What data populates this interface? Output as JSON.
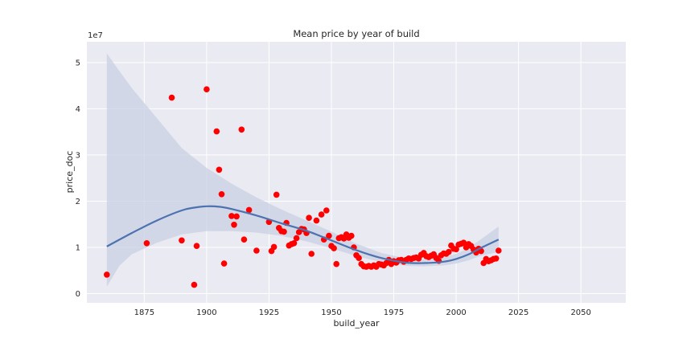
{
  "chart_data": {
    "type": "scatter",
    "title": "Mean price by year of build",
    "xlabel": "build_year",
    "ylabel": "price_doc",
    "y_multiplier_label": "1e7",
    "xlim": [
      1852,
      2068
    ],
    "ylim": [
      -0.2,
      5.45
    ],
    "y_scale": 10000000,
    "x_ticks": [
      1875,
      1900,
      1925,
      1950,
      1975,
      2000,
      2025,
      2050
    ],
    "y_ticks": [
      0,
      1,
      2,
      3,
      4,
      5
    ],
    "grid": true,
    "background": "#eaeaf2",
    "point_color": "#ff0000",
    "fit_color": "#4c72b0",
    "band_color": "#c9d0e3",
    "points": [
      {
        "x": 1860,
        "y": 0.41
      },
      {
        "x": 1876,
        "y": 1.09
      },
      {
        "x": 1886,
        "y": 4.24
      },
      {
        "x": 1890,
        "y": 1.15
      },
      {
        "x": 1895,
        "y": 0.19
      },
      {
        "x": 1896,
        "y": 1.03
      },
      {
        "x": 1900,
        "y": 4.42
      },
      {
        "x": 1904,
        "y": 3.51
      },
      {
        "x": 1905,
        "y": 2.68
      },
      {
        "x": 1906,
        "y": 2.15
      },
      {
        "x": 1907,
        "y": 0.65
      },
      {
        "x": 1910,
        "y": 1.68
      },
      {
        "x": 1911,
        "y": 1.49
      },
      {
        "x": 1912,
        "y": 1.67
      },
      {
        "x": 1914,
        "y": 3.55
      },
      {
        "x": 1915,
        "y": 1.17
      },
      {
        "x": 1917,
        "y": 1.81
      },
      {
        "x": 1920,
        "y": 0.93
      },
      {
        "x": 1925,
        "y": 1.55
      },
      {
        "x": 1926,
        "y": 0.92
      },
      {
        "x": 1927,
        "y": 1.01
      },
      {
        "x": 1928,
        "y": 2.14
      },
      {
        "x": 1929,
        "y": 1.42
      },
      {
        "x": 1930,
        "y": 1.35
      },
      {
        "x": 1931,
        "y": 1.34
      },
      {
        "x": 1932,
        "y": 1.53
      },
      {
        "x": 1933,
        "y": 1.04
      },
      {
        "x": 1934,
        "y": 1.07
      },
      {
        "x": 1935,
        "y": 1.09
      },
      {
        "x": 1936,
        "y": 1.2
      },
      {
        "x": 1937,
        "y": 1.33
      },
      {
        "x": 1938,
        "y": 1.4
      },
      {
        "x": 1939,
        "y": 1.39
      },
      {
        "x": 1940,
        "y": 1.31
      },
      {
        "x": 1941,
        "y": 1.64
      },
      {
        "x": 1942,
        "y": 0.86
      },
      {
        "x": 1944,
        "y": 1.58
      },
      {
        "x": 1946,
        "y": 1.71
      },
      {
        "x": 1947,
        "y": 1.17
      },
      {
        "x": 1948,
        "y": 1.8
      },
      {
        "x": 1949,
        "y": 1.25
      },
      {
        "x": 1950,
        "y": 1.03
      },
      {
        "x": 1951,
        "y": 0.98
      },
      {
        "x": 1952,
        "y": 0.64
      },
      {
        "x": 1953,
        "y": 1.2
      },
      {
        "x": 1954,
        "y": 1.22
      },
      {
        "x": 1955,
        "y": 1.19
      },
      {
        "x": 1956,
        "y": 1.28
      },
      {
        "x": 1957,
        "y": 1.21
      },
      {
        "x": 1958,
        "y": 1.25
      },
      {
        "x": 1959,
        "y": 1.0
      },
      {
        "x": 1960,
        "y": 0.83
      },
      {
        "x": 1961,
        "y": 0.77
      },
      {
        "x": 1962,
        "y": 0.64
      },
      {
        "x": 1963,
        "y": 0.59
      },
      {
        "x": 1964,
        "y": 0.58
      },
      {
        "x": 1965,
        "y": 0.6
      },
      {
        "x": 1966,
        "y": 0.58
      },
      {
        "x": 1967,
        "y": 0.61
      },
      {
        "x": 1968,
        "y": 0.58
      },
      {
        "x": 1969,
        "y": 0.64
      },
      {
        "x": 1970,
        "y": 0.63
      },
      {
        "x": 1971,
        "y": 0.61
      },
      {
        "x": 1972,
        "y": 0.66
      },
      {
        "x": 1973,
        "y": 0.73
      },
      {
        "x": 1974,
        "y": 0.64
      },
      {
        "x": 1975,
        "y": 0.7
      },
      {
        "x": 1976,
        "y": 0.67
      },
      {
        "x": 1977,
        "y": 0.72
      },
      {
        "x": 1978,
        "y": 0.73
      },
      {
        "x": 1979,
        "y": 0.69
      },
      {
        "x": 1980,
        "y": 0.73
      },
      {
        "x": 1981,
        "y": 0.76
      },
      {
        "x": 1982,
        "y": 0.75
      },
      {
        "x": 1983,
        "y": 0.77
      },
      {
        "x": 1984,
        "y": 0.78
      },
      {
        "x": 1985,
        "y": 0.76
      },
      {
        "x": 1986,
        "y": 0.84
      },
      {
        "x": 1987,
        "y": 0.88
      },
      {
        "x": 1988,
        "y": 0.81
      },
      {
        "x": 1989,
        "y": 0.79
      },
      {
        "x": 1990,
        "y": 0.82
      },
      {
        "x": 1991,
        "y": 0.85
      },
      {
        "x": 1992,
        "y": 0.77
      },
      {
        "x": 1993,
        "y": 0.71
      },
      {
        "x": 1994,
        "y": 0.83
      },
      {
        "x": 1995,
        "y": 0.87
      },
      {
        "x": 1996,
        "y": 0.86
      },
      {
        "x": 1997,
        "y": 0.9
      },
      {
        "x": 1998,
        "y": 1.04
      },
      {
        "x": 1999,
        "y": 0.97
      },
      {
        "x": 2000,
        "y": 0.96
      },
      {
        "x": 2001,
        "y": 1.06
      },
      {
        "x": 2002,
        "y": 1.08
      },
      {
        "x": 2003,
        "y": 1.1
      },
      {
        "x": 2004,
        "y": 1.0
      },
      {
        "x": 2005,
        "y": 1.07
      },
      {
        "x": 2006,
        "y": 1.03
      },
      {
        "x": 2007,
        "y": 0.95
      },
      {
        "x": 2008,
        "y": 0.89
      },
      {
        "x": 2009,
        "y": 0.97
      },
      {
        "x": 2010,
        "y": 0.92
      },
      {
        "x": 2011,
        "y": 0.66
      },
      {
        "x": 2012,
        "y": 0.75
      },
      {
        "x": 2013,
        "y": 0.7
      },
      {
        "x": 2014,
        "y": 0.72
      },
      {
        "x": 2015,
        "y": 0.75
      },
      {
        "x": 2016,
        "y": 0.76
      },
      {
        "x": 2017,
        "y": 0.93
      }
    ],
    "fit_line": [
      {
        "x": 1860,
        "y": 1.02
      },
      {
        "x": 1870,
        "y": 1.31
      },
      {
        "x": 1880,
        "y": 1.58
      },
      {
        "x": 1890,
        "y": 1.8
      },
      {
        "x": 1895,
        "y": 1.86
      },
      {
        "x": 1900,
        "y": 1.89
      },
      {
        "x": 1905,
        "y": 1.88
      },
      {
        "x": 1910,
        "y": 1.83
      },
      {
        "x": 1920,
        "y": 1.69
      },
      {
        "x": 1930,
        "y": 1.52
      },
      {
        "x": 1940,
        "y": 1.36
      },
      {
        "x": 1950,
        "y": 1.15
      },
      {
        "x": 1960,
        "y": 0.94
      },
      {
        "x": 1970,
        "y": 0.77
      },
      {
        "x": 1980,
        "y": 0.67
      },
      {
        "x": 1987,
        "y": 0.66
      },
      {
        "x": 1995,
        "y": 0.69
      },
      {
        "x": 2000,
        "y": 0.75
      },
      {
        "x": 2005,
        "y": 0.85
      },
      {
        "x": 2010,
        "y": 0.99
      },
      {
        "x": 2017,
        "y": 1.17
      }
    ],
    "fit_band": [
      {
        "x": 1860,
        "lo": 0.15,
        "hi": 5.2
      },
      {
        "x": 1865,
        "lo": 0.6,
        "hi": 4.82
      },
      {
        "x": 1870,
        "lo": 0.85,
        "hi": 4.45
      },
      {
        "x": 1880,
        "lo": 1.1,
        "hi": 3.8
      },
      {
        "x": 1890,
        "lo": 1.28,
        "hi": 3.15
      },
      {
        "x": 1900,
        "lo": 1.35,
        "hi": 2.72
      },
      {
        "x": 1910,
        "lo": 1.35,
        "hi": 2.38
      },
      {
        "x": 1920,
        "lo": 1.32,
        "hi": 2.08
      },
      {
        "x": 1930,
        "lo": 1.25,
        "hi": 1.82
      },
      {
        "x": 1940,
        "lo": 1.13,
        "hi": 1.58
      },
      {
        "x": 1950,
        "lo": 0.98,
        "hi": 1.34
      },
      {
        "x": 1960,
        "lo": 0.81,
        "hi": 1.08
      },
      {
        "x": 1970,
        "lo": 0.68,
        "hi": 0.88
      },
      {
        "x": 1980,
        "lo": 0.6,
        "hi": 0.76
      },
      {
        "x": 1987,
        "lo": 0.59,
        "hi": 0.74
      },
      {
        "x": 1995,
        "lo": 0.61,
        "hi": 0.78
      },
      {
        "x": 2000,
        "lo": 0.65,
        "hi": 0.86
      },
      {
        "x": 2005,
        "lo": 0.72,
        "hi": 0.98
      },
      {
        "x": 2010,
        "lo": 0.82,
        "hi": 1.18
      },
      {
        "x": 2017,
        "lo": 0.9,
        "hi": 1.45
      }
    ]
  }
}
